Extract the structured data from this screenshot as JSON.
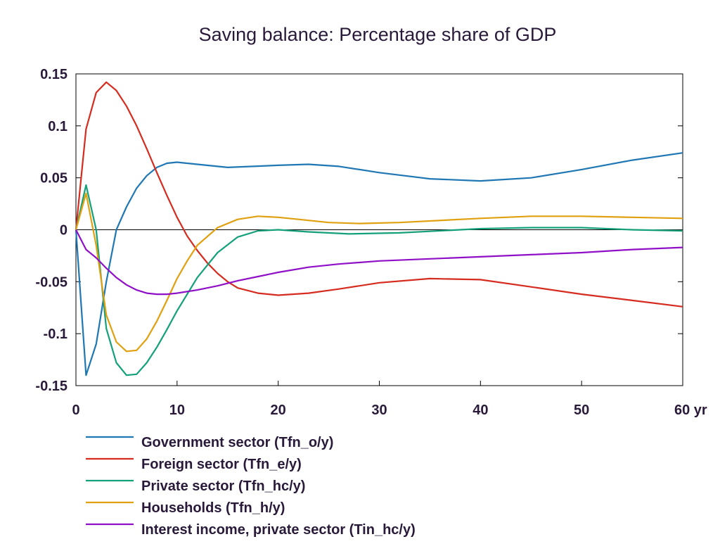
{
  "chart_data": {
    "type": "line",
    "title": "Saving balance: Percentage share of GDP",
    "xlabel": "",
    "ylabel": "",
    "xlim": [
      0,
      60
    ],
    "ylim": [
      -0.15,
      0.15
    ],
    "x_ticks": [
      0,
      10,
      20,
      30,
      40,
      50,
      60
    ],
    "x_tick_labels": [
      "0",
      "10",
      "20",
      "30",
      "40",
      "50",
      "60 yr"
    ],
    "y_ticks": [
      0.15,
      0.1,
      0.05,
      0,
      -0.05,
      -0.1,
      -0.15
    ],
    "y_tick_labels": [
      "0.15",
      "0.1",
      "0.05",
      "0",
      "-0.05",
      "-0.1",
      "-0.15"
    ],
    "legend_position": "bottom",
    "grid": false,
    "zero_line": true,
    "series": [
      {
        "name": "Government sector (Tfn_o/y)",
        "color": "#1f77b4",
        "points": [
          [
            0,
            0
          ],
          [
            1,
            -0.14
          ],
          [
            2,
            -0.11
          ],
          [
            3,
            -0.05
          ],
          [
            4,
            0.0
          ],
          [
            5,
            0.022
          ],
          [
            6,
            0.04
          ],
          [
            7,
            0.052
          ],
          [
            8,
            0.06
          ],
          [
            9,
            0.064
          ],
          [
            10,
            0.065
          ],
          [
            12,
            0.063
          ],
          [
            15,
            0.06
          ],
          [
            20,
            0.062
          ],
          [
            23,
            0.063
          ],
          [
            26,
            0.061
          ],
          [
            30,
            0.055
          ],
          [
            35,
            0.049
          ],
          [
            40,
            0.047
          ],
          [
            45,
            0.05
          ],
          [
            50,
            0.058
          ],
          [
            55,
            0.067
          ],
          [
            60,
            0.074
          ]
        ]
      },
      {
        "name": "Foreign sector (Tfn_e/y)",
        "color": "#d62b1f",
        "points": [
          [
            0,
            0
          ],
          [
            1,
            0.097
          ],
          [
            2,
            0.132
          ],
          [
            3,
            0.142
          ],
          [
            4,
            0.134
          ],
          [
            5,
            0.119
          ],
          [
            6,
            0.1
          ],
          [
            7,
            0.078
          ],
          [
            8,
            0.055
          ],
          [
            9,
            0.033
          ],
          [
            10,
            0.012
          ],
          [
            11,
            -0.006
          ],
          [
            12,
            -0.02
          ],
          [
            13,
            -0.032
          ],
          [
            14,
            -0.042
          ],
          [
            15,
            -0.05
          ],
          [
            16,
            -0.056
          ],
          [
            18,
            -0.061
          ],
          [
            20,
            -0.063
          ],
          [
            23,
            -0.061
          ],
          [
            26,
            -0.057
          ],
          [
            30,
            -0.051
          ],
          [
            35,
            -0.047
          ],
          [
            40,
            -0.048
          ],
          [
            45,
            -0.055
          ],
          [
            50,
            -0.062
          ],
          [
            55,
            -0.068
          ],
          [
            60,
            -0.074
          ]
        ]
      },
      {
        "name": "Private sector (Tfn_hc/y)",
        "color": "#14a07a",
        "points": [
          [
            0,
            0
          ],
          [
            1,
            0.043
          ],
          [
            2,
            0.0
          ],
          [
            3,
            -0.095
          ],
          [
            4,
            -0.128
          ],
          [
            5,
            -0.14
          ],
          [
            6,
            -0.139
          ],
          [
            7,
            -0.128
          ],
          [
            8,
            -0.113
          ],
          [
            9,
            -0.096
          ],
          [
            10,
            -0.078
          ],
          [
            12,
            -0.046
          ],
          [
            14,
            -0.022
          ],
          [
            16,
            -0.007
          ],
          [
            18,
            -0.001
          ],
          [
            20,
            0.0
          ],
          [
            23,
            -0.002
          ],
          [
            27,
            -0.004
          ],
          [
            32,
            -0.003
          ],
          [
            40,
            0.001
          ],
          [
            45,
            0.002
          ],
          [
            50,
            0.002
          ],
          [
            55,
            0.0
          ],
          [
            60,
            -0.001
          ]
        ]
      },
      {
        "name": "Households (Tfn_h/y)",
        "color": "#e0a010",
        "points": [
          [
            0,
            0
          ],
          [
            1,
            0.035
          ],
          [
            2,
            -0.015
          ],
          [
            3,
            -0.082
          ],
          [
            4,
            -0.108
          ],
          [
            5,
            -0.117
          ],
          [
            6,
            -0.116
          ],
          [
            7,
            -0.105
          ],
          [
            8,
            -0.088
          ],
          [
            9,
            -0.068
          ],
          [
            10,
            -0.047
          ],
          [
            11,
            -0.03
          ],
          [
            12,
            -0.015
          ],
          [
            14,
            0.002
          ],
          [
            16,
            0.01
          ],
          [
            18,
            0.013
          ],
          [
            20,
            0.012
          ],
          [
            22,
            0.01
          ],
          [
            25,
            0.007
          ],
          [
            28,
            0.006
          ],
          [
            32,
            0.007
          ],
          [
            40,
            0.011
          ],
          [
            45,
            0.013
          ],
          [
            50,
            0.013
          ],
          [
            55,
            0.012
          ],
          [
            60,
            0.011
          ]
        ]
      },
      {
        "name": "Interest income, private sector (Tin_hc/y)",
        "color": "#9010c8",
        "points": [
          [
            0,
            0
          ],
          [
            1,
            -0.019
          ],
          [
            2,
            -0.027
          ],
          [
            3,
            -0.037
          ],
          [
            4,
            -0.046
          ],
          [
            5,
            -0.053
          ],
          [
            6,
            -0.058
          ],
          [
            7,
            -0.061
          ],
          [
            8,
            -0.062
          ],
          [
            9,
            -0.062
          ],
          [
            10,
            -0.061
          ],
          [
            12,
            -0.058
          ],
          [
            14,
            -0.054
          ],
          [
            16,
            -0.049
          ],
          [
            18,
            -0.045
          ],
          [
            20,
            -0.041
          ],
          [
            23,
            -0.036
          ],
          [
            26,
            -0.033
          ],
          [
            30,
            -0.03
          ],
          [
            35,
            -0.028
          ],
          [
            40,
            -0.026
          ],
          [
            45,
            -0.024
          ],
          [
            50,
            -0.022
          ],
          [
            55,
            -0.019
          ],
          [
            60,
            -0.017
          ]
        ]
      }
    ]
  }
}
